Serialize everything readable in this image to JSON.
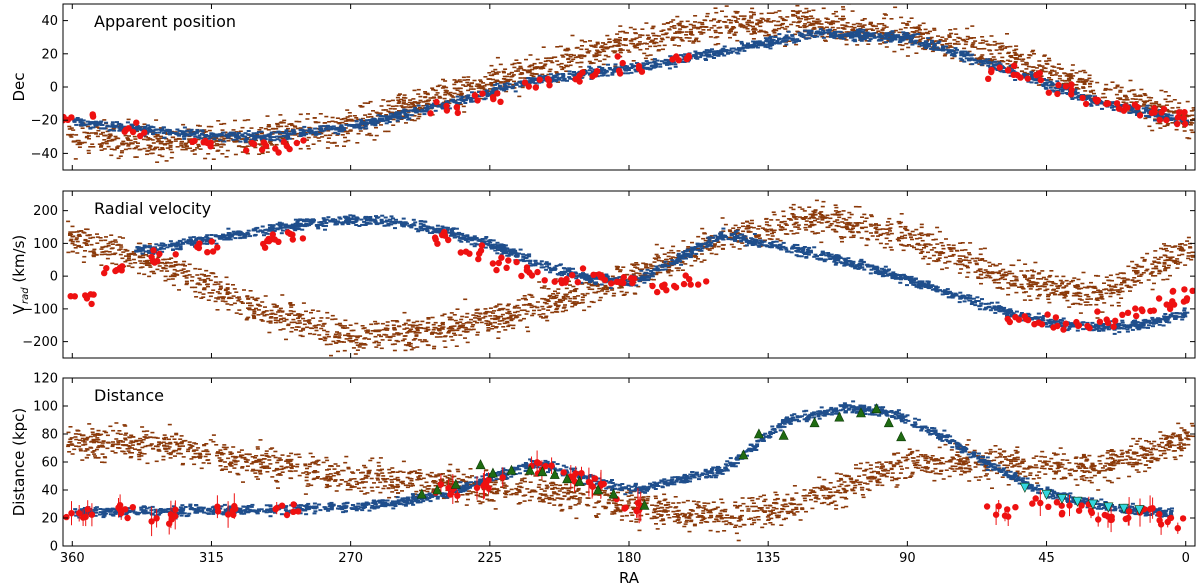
{
  "colors": {
    "debris_brown": "#8b3a0a",
    "stream_blue": "#1f4e8c",
    "obs_red": "#ee1111",
    "green_tri": "#1f6b12",
    "cyan_tri": "#33d6e0"
  },
  "chart_data": [
    {
      "type": "scatter",
      "title": "Apparent position",
      "xlabel": "",
      "ylabel": "Dec",
      "xlim": [
        363,
        -3
      ],
      "ylim": [
        -50,
        50
      ],
      "yticks": [
        -40,
        -20,
        0,
        20,
        40
      ],
      "ytick_labels": [
        "−40",
        "−20",
        "0",
        "20",
        "40"
      ],
      "series": [
        {
          "name": "debris",
          "x": [
            360,
            330,
            300,
            270,
            240,
            210,
            180,
            150,
            120,
            90,
            60,
            30,
            0
          ],
          "y": [
            -30,
            -33,
            -30,
            -22,
            -5,
            12,
            28,
            38,
            38,
            32,
            20,
            0,
            -20
          ]
        },
        {
          "name": "stream",
          "x": [
            360,
            330,
            300,
            270,
            240,
            225,
            210,
            180,
            150,
            120,
            90,
            60,
            30,
            0
          ],
          "y": [
            -20,
            -27,
            -30,
            -23,
            -10,
            -2,
            5,
            12,
            22,
            33,
            30,
            12,
            -8,
            -20
          ]
        },
        {
          "name": "observed",
          "x": [
            358,
            340,
            320,
            300,
            290,
            240,
            225,
            210,
            195,
            180,
            165,
            60,
            50,
            40,
            30,
            20,
            10,
            5
          ],
          "y": [
            -18,
            -25,
            -33,
            -35,
            -36,
            -12,
            -5,
            3,
            8,
            12,
            17,
            10,
            5,
            -2,
            -8,
            -12,
            -15,
            -18
          ]
        }
      ]
    },
    {
      "type": "scatter",
      "title": "Radial velocity",
      "xlabel": "",
      "ylabel": "V_rad (km/s)",
      "ylabel_main": "V",
      "ylabel_sub": "rad",
      "ylabel_rest": " (km/s)",
      "xlim": [
        363,
        -3
      ],
      "ylim": [
        -250,
        260
      ],
      "yticks": [
        -200,
        -100,
        0,
        100,
        200
      ],
      "ytick_labels": [
        "−200",
        "−100",
        "0",
        "100",
        "200"
      ],
      "series": [
        {
          "name": "debris",
          "x": [
            360,
            330,
            300,
            270,
            240,
            210,
            180,
            150,
            120,
            90,
            60,
            30,
            0
          ],
          "y": [
            120,
            30,
            -100,
            -180,
            -160,
            -90,
            0,
            120,
            180,
            120,
            0,
            -60,
            80
          ]
        },
        {
          "name": "stream",
          "x": [
            340,
            320,
            300,
            285,
            270,
            255,
            240,
            225,
            210,
            195,
            180,
            150,
            120,
            100,
            80,
            60,
            45,
            30,
            15,
            0
          ],
          "y": [
            80,
            110,
            140,
            165,
            175,
            170,
            140,
            100,
            40,
            0,
            -20,
            130,
            70,
            20,
            -40,
            -100,
            -140,
            -155,
            -145,
            -110
          ]
        },
        {
          "name": "observed",
          "x": [
            358,
            345,
            330,
            315,
            300,
            290,
            240,
            230,
            220,
            210,
            200,
            190,
            180,
            170,
            160,
            55,
            45,
            35,
            25,
            15,
            5,
            0
          ],
          "y": [
            -60,
            20,
            60,
            90,
            110,
            120,
            120,
            80,
            40,
            10,
            -10,
            -5,
            -20,
            -30,
            -20,
            -130,
            -140,
            -150,
            -130,
            -110,
            -80,
            -50
          ]
        }
      ]
    },
    {
      "type": "scatter",
      "title": "Distance",
      "xlabel": "RA",
      "ylabel": "Distance (kpc)",
      "xlim": [
        363,
        -3
      ],
      "ylim": [
        0,
        120
      ],
      "yticks": [
        0,
        20,
        40,
        60,
        80,
        100,
        120
      ],
      "ytick_labels": [
        "0",
        "20",
        "40",
        "60",
        "80",
        "100",
        "120"
      ],
      "xticks": [
        360,
        315,
        270,
        225,
        180,
        135,
        90,
        45,
        0
      ],
      "xtick_labels": [
        "360",
        "315",
        "270",
        "225",
        "180",
        "135",
        "90",
        "45",
        "0"
      ],
      "series": [
        {
          "name": "debris",
          "x": [
            360,
            330,
            300,
            270,
            240,
            210,
            180,
            150,
            120,
            90,
            60,
            30,
            0
          ],
          "y": [
            75,
            72,
            60,
            50,
            45,
            40,
            30,
            20,
            35,
            60,
            60,
            55,
            78
          ]
        },
        {
          "name": "stream",
          "x": [
            360,
            320,
            290,
            260,
            240,
            225,
            210,
            195,
            180,
            150,
            130,
            110,
            95,
            80,
            65,
            50,
            35,
            20,
            5
          ],
          "y": [
            25,
            26,
            27,
            30,
            38,
            50,
            60,
            50,
            40,
            55,
            90,
            100,
            95,
            80,
            60,
            42,
            33,
            27,
            24
          ]
        },
        {
          "name": "observed",
          "x": [
            358,
            345,
            330,
            310,
            290,
            240,
            225,
            210,
            200,
            190,
            180,
            60,
            45,
            35,
            25,
            15,
            5
          ],
          "y": [
            22,
            25,
            20,
            25,
            25,
            40,
            45,
            55,
            50,
            45,
            30,
            25,
            30,
            28,
            20,
            25,
            18
          ]
        },
        {
          "name": "green_triangles",
          "x": [
            247,
            242,
            236,
            228,
            224,
            218,
            212,
            208,
            204,
            200,
            196,
            190,
            185,
            175,
            143,
            138,
            130,
            120,
            112,
            105,
            100,
            96,
            92
          ],
          "y": [
            37,
            40,
            44,
            58,
            52,
            54,
            54,
            53,
            51,
            48,
            46,
            40,
            37,
            29,
            65,
            80,
            79,
            88,
            92,
            95,
            98,
            88,
            78
          ]
        },
        {
          "name": "cyan_triangles",
          "x": [
            52,
            45,
            40,
            35,
            30,
            25,
            20,
            15
          ],
          "y": [
            42,
            37,
            34,
            32,
            30,
            28,
            27,
            26
          ]
        }
      ]
    }
  ]
}
